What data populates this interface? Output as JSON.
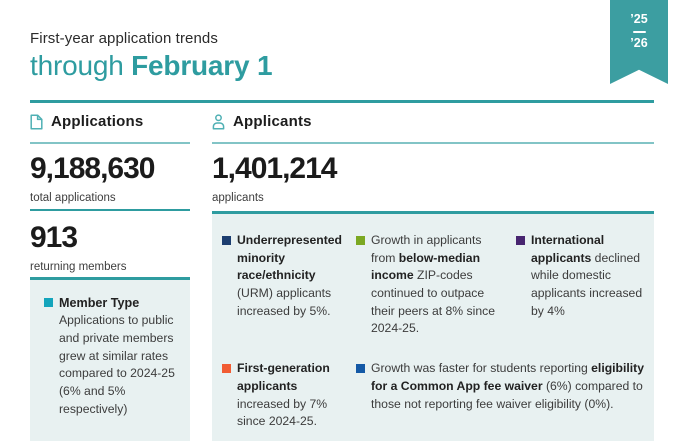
{
  "header": {
    "eyebrow": "First-year application trends",
    "title_light": "through ",
    "title_bold": "February 1",
    "ribbon": {
      "top": "’25",
      "bottom": "’26"
    }
  },
  "colors": {
    "accent_teal": "#2e9ca0",
    "light_teal_line": "#82c4c6",
    "box_background": "#e8f1f1",
    "ribbon_teal": "#3c9ea1",
    "icon_teal": "#4fb0b4"
  },
  "applications": {
    "section_label": "Applications",
    "icon": "document-icon",
    "total": {
      "value": "9,188,630",
      "caption": "total applications"
    },
    "returning": {
      "value": "913",
      "caption": "returning members"
    },
    "member_box": {
      "bullet_color": "#14a5bc",
      "title": "Member Type",
      "body": "Applications to public and private members grew at similar rates compared to 2024-25 (6% and 5% respectively)"
    }
  },
  "applicants": {
    "section_label": "Applicants",
    "icon": "person-icon",
    "total": {
      "value": "1,401,214",
      "caption": "applicants"
    },
    "bullets": [
      {
        "name": "urm",
        "color": "#1c3e70",
        "segments": [
          {
            "text": "Underrepresented minority race/ethnicity",
            "bold": true
          },
          {
            "text": " (URM) applicants increased by 5%.",
            "bold": false
          }
        ]
      },
      {
        "name": "below-median-income",
        "color": "#7ba822",
        "segments": [
          {
            "text": "Growth in applicants from ",
            "bold": false
          },
          {
            "text": "below-median income",
            "bold": true
          },
          {
            "text": " ZIP-codes continued to outpace their peers at 8% since 2024-25.",
            "bold": false
          }
        ]
      },
      {
        "name": "international",
        "color": "#472570",
        "segments": [
          {
            "text": "International applicants",
            "bold": true
          },
          {
            "text": " declined while domestic applicants increased by 4%",
            "bold": false
          }
        ]
      },
      {
        "name": "first-generation",
        "color": "#f15c33",
        "segments": [
          {
            "text": "First-generation applicants",
            "bold": true
          },
          {
            "text": " increased by 7% since 2024-25.",
            "bold": false
          }
        ]
      },
      {
        "name": "fee-waiver",
        "color": "#1459a6",
        "segments": [
          {
            "text": "Growth was faster for students reporting ",
            "bold": false
          },
          {
            "text": "eligibility for a Common App fee waiver",
            "bold": true
          },
          {
            "text": " (6%) compared to those not reporting fee waiver eligibility (0%).",
            "bold": false
          }
        ]
      }
    ]
  }
}
